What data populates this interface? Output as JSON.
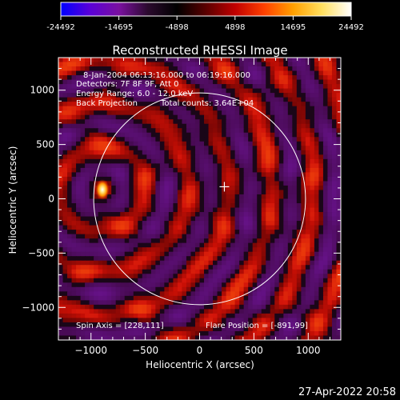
{
  "colorbar": {
    "tick_labels": [
      "-24492",
      "-14695",
      "-4898",
      "4898",
      "14695",
      "24492"
    ],
    "range": [
      -24492,
      24492
    ],
    "colormap": [
      "#0000ff",
      "#5a00d8",
      "#7a10a0",
      "#2b0a2e",
      "#000000",
      "#5a0000",
      "#c00000",
      "#ff4000",
      "#ffa000",
      "#ffe060",
      "#ffffff"
    ]
  },
  "chart_data": {
    "type": "heatmap",
    "title": "Reconstructed RHESSI Image",
    "xlabel": "Heliocentric X (arcsec)",
    "ylabel": "Heliocentric Y (arcsec)",
    "xlim": [
      -1300,
      1300
    ],
    "ylim": [
      -1300,
      1300
    ],
    "x_ticks": [
      -1000,
      -500,
      0,
      500,
      1000
    ],
    "y_ticks": [
      -1000,
      -500,
      0,
      500,
      1000
    ],
    "x_tick_labels": [
      "−1000",
      "−500",
      "0",
      "500",
      "1000"
    ],
    "y_tick_labels": [
      "−1000",
      "−500",
      "0",
      "500",
      "1000"
    ],
    "solar_limb": {
      "center": [
        0,
        0
      ],
      "radius_arcsec": 975
    },
    "spin_axis": [
      228,
      111
    ],
    "flare_position": [
      -891,
      99
    ],
    "annotations": [
      "8-Jan-2004 06:13:16.000 to 06:19:16.000",
      "Detectors: 7F 8F 9F, Att 0",
      "Energy Range: 6.0 - 12.0 keV",
      "Back Projection",
      "Total counts: 3.64E+04"
    ],
    "bottom_left_label": "Spin Axis = [228,111]",
    "bottom_right_label": "Flare Position = [-891,99]",
    "grid": false
  },
  "footer": {
    "timestamp": "27-Apr-2022 20:58"
  }
}
